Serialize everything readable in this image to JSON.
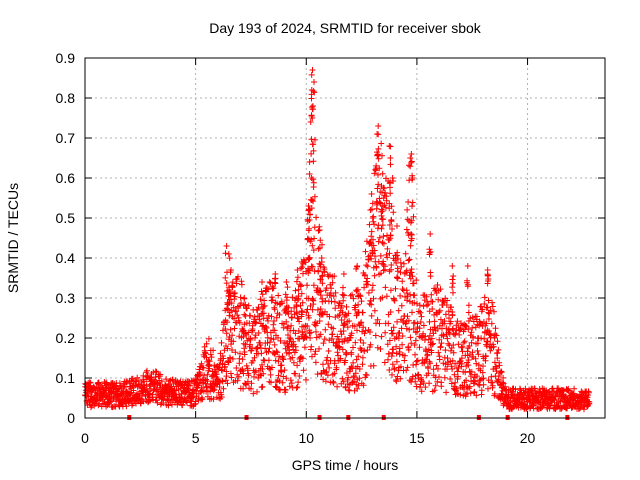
{
  "chart_data": {
    "type": "scatter",
    "title": "Day 193 of 2024, SRMTID for receiver sbok",
    "xlabel": "GPS time / hours",
    "ylabel": "SRMTID / TECUs",
    "xlim": [
      0,
      23.5
    ],
    "ylim": [
      0,
      0.9
    ],
    "x_ticks": [
      0,
      5,
      10,
      15,
      20
    ],
    "y_ticks": [
      0,
      0.1,
      0.2,
      0.3,
      0.4,
      0.5,
      0.6,
      0.7,
      0.8,
      0.9
    ],
    "grid": true,
    "marker": "+",
    "color": "#ff0000",
    "gap_markers_x": [
      2.0,
      7.3,
      10.6,
      11.9,
      13.5,
      17.8,
      19.1,
      21.8
    ],
    "envelope": [
      [
        0,
        0.06
      ],
      [
        0.5,
        0.06
      ],
      [
        1,
        0.06
      ],
      [
        1.5,
        0.06
      ],
      [
        2,
        0.065
      ],
      [
        2.5,
        0.07
      ],
      [
        3,
        0.085
      ],
      [
        3.5,
        0.07
      ],
      [
        4,
        0.065
      ],
      [
        4.5,
        0.06
      ],
      [
        5,
        0.065
      ],
      [
        5.3,
        0.1
      ],
      [
        5.6,
        0.12
      ],
      [
        6,
        0.09
      ],
      [
        6.5,
        0.2
      ],
      [
        7,
        0.21
      ],
      [
        7.5,
        0.17
      ],
      [
        8,
        0.18
      ],
      [
        8.5,
        0.22
      ],
      [
        9,
        0.17
      ],
      [
        9.5,
        0.2
      ],
      [
        10,
        0.26
      ],
      [
        10.2,
        0.35
      ],
      [
        10.5,
        0.3
      ],
      [
        11,
        0.22
      ],
      [
        11.5,
        0.2
      ],
      [
        12,
        0.18
      ],
      [
        12.5,
        0.2
      ],
      [
        13,
        0.35
      ],
      [
        13.3,
        0.42
      ],
      [
        13.6,
        0.38
      ],
      [
        14,
        0.25
      ],
      [
        14.5,
        0.25
      ],
      [
        15,
        0.2
      ],
      [
        15.5,
        0.18
      ],
      [
        16,
        0.2
      ],
      [
        16.5,
        0.17
      ],
      [
        17,
        0.14
      ],
      [
        17.5,
        0.15
      ],
      [
        18,
        0.17
      ],
      [
        18.3,
        0.22
      ],
      [
        18.6,
        0.12
      ],
      [
        19,
        0.05
      ],
      [
        19.5,
        0.05
      ],
      [
        20,
        0.05
      ],
      [
        21,
        0.05
      ],
      [
        22,
        0.05
      ],
      [
        22.8,
        0.045
      ]
    ],
    "spikes": [
      [
        6.4,
        0.43
      ],
      [
        6.5,
        0.41
      ],
      [
        6.6,
        0.37
      ],
      [
        7.2,
        0.3
      ],
      [
        8.0,
        0.34
      ],
      [
        8.6,
        0.36
      ],
      [
        9.1,
        0.34
      ],
      [
        9.6,
        0.37
      ],
      [
        9.8,
        0.39
      ],
      [
        10.1,
        0.53
      ],
      [
        10.15,
        0.64
      ],
      [
        10.2,
        0.74
      ],
      [
        10.25,
        0.82
      ],
      [
        10.28,
        0.87
      ],
      [
        10.3,
        0.78
      ],
      [
        10.35,
        0.84
      ],
      [
        10.6,
        0.47
      ],
      [
        10.7,
        0.39
      ],
      [
        11.7,
        0.36
      ],
      [
        12.3,
        0.38
      ],
      [
        12.9,
        0.52
      ],
      [
        13.0,
        0.5
      ],
      [
        13.2,
        0.71
      ],
      [
        13.25,
        0.73
      ],
      [
        13.4,
        0.58
      ],
      [
        13.5,
        0.55
      ],
      [
        13.75,
        0.68
      ],
      [
        13.8,
        0.65
      ],
      [
        13.9,
        0.6
      ],
      [
        14.1,
        0.48
      ],
      [
        14.6,
        0.54
      ],
      [
        14.7,
        0.65
      ],
      [
        14.75,
        0.66
      ],
      [
        14.8,
        0.6
      ],
      [
        15.6,
        0.46
      ],
      [
        16.6,
        0.38
      ],
      [
        17.3,
        0.38
      ],
      [
        18.2,
        0.37
      ]
    ],
    "scatter_count": 2400,
    "x_range_points": [
      0,
      22.8
    ]
  }
}
